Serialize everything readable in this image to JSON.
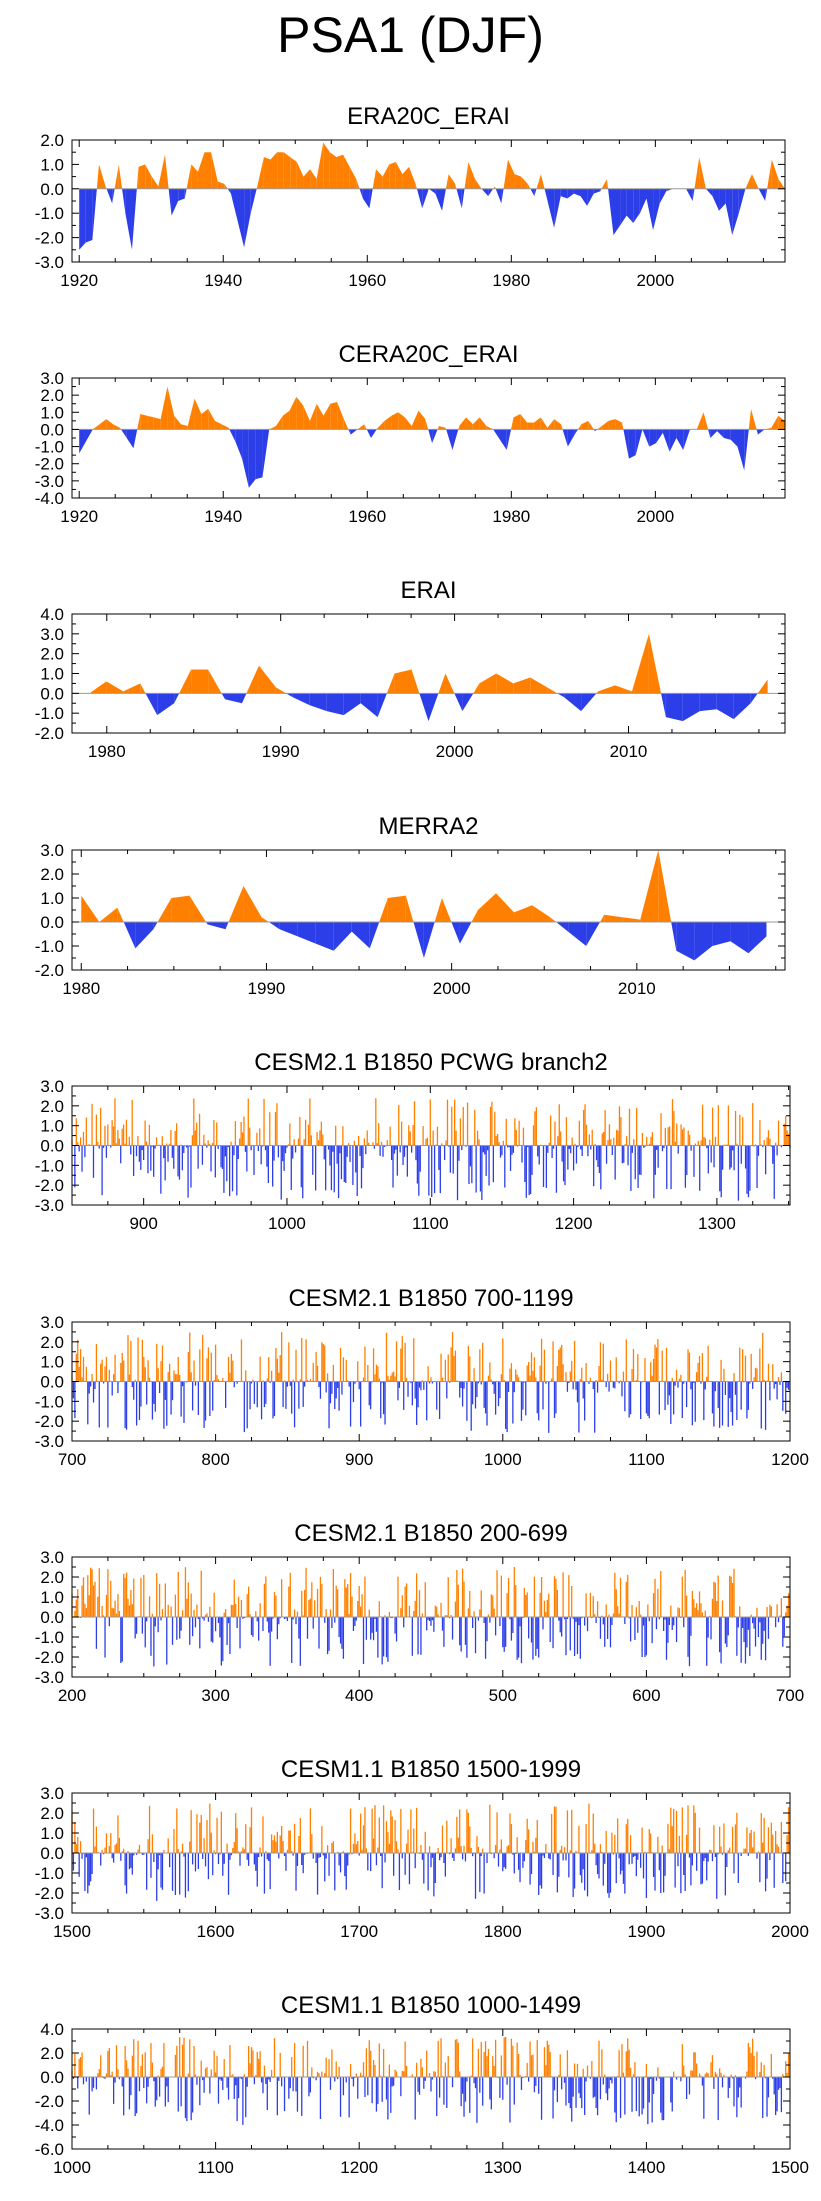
{
  "figure": {
    "title": "PSA1 (DJF)",
    "positive_color": "#ff8000",
    "negative_color": "#2c3ee8"
  },
  "chart_data": [
    {
      "type": "area",
      "title": "ERA20C_ERAI",
      "x_start": 1920,
      "x_end": 2018,
      "xlim": [
        1919,
        2018
      ],
      "ylim": [
        -3.0,
        2.0
      ],
      "yticks": [
        "2.0",
        "1.0",
        "0.0",
        "-1.0",
        "-2.0",
        "-3.0"
      ],
      "ytick_values": [
        2,
        1,
        0,
        -1,
        -2,
        -3
      ],
      "xticks": [
        "1920",
        "1940",
        "1960",
        "1980",
        "2000"
      ],
      "xtick_values": [
        1920,
        1940,
        1960,
        1980,
        2000
      ],
      "values": [
        -2.5,
        -2.2,
        -2.1,
        1.0,
        0.1,
        -0.6,
        1.0,
        -1.0,
        -2.5,
        0.9,
        1.0,
        0.5,
        0.1,
        1.4,
        -1.1,
        -0.5,
        -0.4,
        1.0,
        0.7,
        1.5,
        1.5,
        0.3,
        0.2,
        -0.2,
        -1.3,
        -2.4,
        -1.0,
        0.1,
        1.3,
        1.2,
        1.5,
        1.5,
        1.3,
        1.1,
        0.5,
        0.8,
        0.4,
        1.9,
        1.5,
        1.3,
        1.4,
        0.9,
        0.4,
        -0.4,
        -0.8,
        0.8,
        0.5,
        1.0,
        1.1,
        0.6,
        0.9,
        0.2,
        -0.8,
        0.0,
        -0.2,
        -0.9,
        0.6,
        0.2,
        -0.8,
        1.1,
        0.4,
        0.0,
        -0.3,
        0.1,
        -0.6,
        1.2,
        0.6,
        0.5,
        0.2,
        -0.3,
        0.6,
        -0.5,
        -1.6,
        -0.3,
        -0.4,
        -0.2,
        -0.3,
        -0.7,
        -0.2,
        -0.1,
        0.4,
        -1.9,
        -1.5,
        -1.1,
        -1.4,
        -1.0,
        -0.4,
        -1.7,
        -0.6,
        -0.1,
        0.0,
        0.0,
        0.0,
        -0.5,
        1.3,
        0.0,
        -0.3,
        -0.9,
        -0.6,
        -1.9,
        -1.0,
        0.0,
        0.6,
        0.0,
        -0.5,
        1.2,
        0.4,
        0.0
      ]
    },
    {
      "type": "area",
      "title": "CERA20C_ERAI",
      "x_start": 1920,
      "x_end": 2018,
      "xlim": [
        1919,
        2018
      ],
      "ylim": [
        -4.0,
        3.0
      ],
      "yticks": [
        "3.0",
        "2.0",
        "1.0",
        "0.0",
        "-1.0",
        "-2.0",
        "-3.0",
        "-4.0"
      ],
      "ytick_values": [
        3,
        2,
        1,
        0,
        -1,
        -2,
        -3,
        -4
      ],
      "xticks": [
        "1920",
        "1940",
        "1960",
        "1980",
        "2000"
      ],
      "xtick_values": [
        1920,
        1940,
        1960,
        1980,
        2000
      ],
      "values": [
        -1.4,
        -0.7,
        0.0,
        0.3,
        0.6,
        0.3,
        0.1,
        -0.5,
        -1.1,
        0.9,
        0.8,
        0.7,
        0.6,
        2.5,
        0.8,
        0.3,
        0.2,
        1.8,
        0.9,
        1.2,
        0.5,
        0.3,
        0.1,
        -0.7,
        -1.7,
        -3.4,
        -2.9,
        -2.8,
        0.0,
        0.2,
        0.8,
        1.1,
        1.9,
        1.4,
        0.5,
        1.5,
        0.8,
        1.5,
        1.6,
        0.6,
        -0.3,
        0.0,
        0.3,
        -0.5,
        0.1,
        0.5,
        0.8,
        1.0,
        0.7,
        0.2,
        1.1,
        0.6,
        -0.8,
        0.2,
        0.1,
        -1.2,
        0.2,
        0.7,
        0.3,
        0.7,
        0.2,
        0.0,
        -0.6,
        -1.2,
        0.7,
        0.9,
        0.4,
        0.4,
        0.7,
        0.1,
        0.6,
        0.3,
        -1.0,
        -0.3,
        0.3,
        0.5,
        -0.1,
        0.2,
        0.5,
        0.6,
        0.4,
        -1.7,
        -1.5,
        0.0,
        -1.0,
        -0.8,
        -0.2,
        -1.3,
        -0.5,
        -1.2,
        0.0,
        0.0,
        1.0,
        -0.5,
        -0.1,
        -0.5,
        -0.6,
        -1.0,
        -2.4,
        1.2,
        -0.3,
        0.0,
        0.1,
        0.8,
        0.5
      ]
    },
    {
      "type": "area",
      "title": "ERAI",
      "x_start": 1979,
      "x_end": 2018,
      "xlim": [
        1978,
        2019
      ],
      "ylim": [
        -2.0,
        4.0
      ],
      "yticks": [
        "4.0",
        "3.0",
        "2.0",
        "1.0",
        "0.0",
        "-1.0",
        "-2.0"
      ],
      "ytick_values": [
        4,
        3,
        2,
        1,
        0,
        -1,
        -2
      ],
      "xticks": [
        "1980",
        "1990",
        "2000",
        "2010"
      ],
      "xtick_values": [
        1980,
        1990,
        2000,
        2010
      ],
      "values": [
        0.0,
        0.6,
        0.1,
        0.5,
        -1.1,
        -0.5,
        1.2,
        1.2,
        -0.3,
        -0.5,
        1.4,
        0.3,
        -0.2,
        -0.6,
        -0.9,
        -1.1,
        -0.5,
        -1.2,
        1.0,
        1.2,
        -1.4,
        1.0,
        -0.9,
        0.5,
        1.0,
        0.5,
        0.8,
        0.3,
        -0.2,
        -0.9,
        0.1,
        0.4,
        0.1,
        3.0,
        -1.2,
        -1.4,
        -0.9,
        -0.8,
        -1.3,
        -0.5,
        0.7
      ]
    },
    {
      "type": "area",
      "title": "MERRA2",
      "x_start": 1980,
      "x_end": 2017,
      "xlim": [
        1979.5,
        2018
      ],
      "ylim": [
        -2.0,
        3.0
      ],
      "yticks": [
        "3.0",
        "2.0",
        "1.0",
        "0.0",
        "-1.0",
        "-2.0"
      ],
      "ytick_values": [
        3,
        2,
        1,
        0,
        -1,
        -2
      ],
      "xticks": [
        "1980",
        "1990",
        "2000",
        "2010"
      ],
      "xtick_values": [
        1980,
        1990,
        2000,
        2010
      ],
      "values": [
        1.1,
        0.0,
        0.6,
        -1.1,
        -0.3,
        1.0,
        1.1,
        -0.1,
        -0.3,
        1.5,
        0.2,
        -0.3,
        -0.6,
        -0.9,
        -1.2,
        -0.4,
        -1.1,
        1.0,
        1.1,
        -1.5,
        1.0,
        -0.9,
        0.5,
        1.2,
        0.4,
        0.7,
        0.2,
        -0.4,
        -1.0,
        0.3,
        0.2,
        0.1,
        3.0,
        -1.2,
        -1.6,
        -1.0,
        -0.8,
        -1.3,
        -0.6
      ]
    },
    {
      "type": "area",
      "title": "CESM2.1 B1850 PCWG branch2",
      "series_kind": "simulated",
      "x_start": 850,
      "x_end": 1351,
      "xlim": [
        850,
        1351
      ],
      "ylim": [
        -3.0,
        3.0
      ],
      "yticks": [
        "3.0",
        "2.0",
        "1.0",
        "0.0",
        "-1.0",
        "-2.0",
        "-3.0"
      ],
      "ytick_values": [
        3,
        2,
        1,
        0,
        -1,
        -2,
        -3
      ],
      "xticks": [
        "900",
        "1000",
        "1100",
        "1200",
        "1300"
      ],
      "xtick_values": [
        900,
        1000,
        1100,
        1200,
        1300
      ],
      "amp_pos": 2.4,
      "amp_neg": 2.8,
      "seed": 11
    },
    {
      "type": "area",
      "title": "CESM2.1 B1850 700-1199",
      "series_kind": "simulated",
      "x_start": 700,
      "x_end": 1199,
      "xlim": [
        700,
        1200
      ],
      "ylim": [
        -3.0,
        3.0
      ],
      "yticks": [
        "3.0",
        "2.0",
        "1.0",
        "0.0",
        "-1.0",
        "-2.0",
        "-3.0"
      ],
      "ytick_values": [
        3,
        2,
        1,
        0,
        -1,
        -2,
        -3
      ],
      "xticks": [
        "700",
        "800",
        "900",
        "1000",
        "1100",
        "1200"
      ],
      "xtick_values": [
        700,
        800,
        900,
        1000,
        1100,
        1200
      ],
      "amp_pos": 2.5,
      "amp_neg": 2.6,
      "seed": 23
    },
    {
      "type": "area",
      "title": "CESM2.1 B1850 200-699",
      "series_kind": "simulated",
      "x_start": 200,
      "x_end": 699,
      "xlim": [
        200,
        700
      ],
      "ylim": [
        -3.0,
        3.0
      ],
      "yticks": [
        "3.0",
        "2.0",
        "1.0",
        "0.0",
        "-1.0",
        "-2.0",
        "-3.0"
      ],
      "ytick_values": [
        3,
        2,
        1,
        0,
        -1,
        -2,
        -3
      ],
      "xticks": [
        "200",
        "300",
        "400",
        "500",
        "600",
        "700"
      ],
      "xtick_values": [
        200,
        300,
        400,
        500,
        600,
        700
      ],
      "amp_pos": 2.5,
      "amp_neg": 2.5,
      "seed": 37
    },
    {
      "type": "area",
      "title": "CESM1.1 B1850 1500-1999",
      "series_kind": "simulated",
      "x_start": 1500,
      "x_end": 1999,
      "xlim": [
        1500,
        2000
      ],
      "ylim": [
        -3.0,
        3.0
      ],
      "yticks": [
        "3.0",
        "2.0",
        "1.0",
        "0.0",
        "-1.0",
        "-2.0",
        "-3.0"
      ],
      "ytick_values": [
        3,
        2,
        1,
        0,
        -1,
        -2,
        -3
      ],
      "xticks": [
        "1500",
        "1600",
        "1700",
        "1800",
        "1900",
        "2000"
      ],
      "xtick_values": [
        1500,
        1600,
        1700,
        1800,
        1900,
        2000
      ],
      "amp_pos": 2.5,
      "amp_neg": 2.4,
      "seed": 51
    },
    {
      "type": "area",
      "title": "CESM1.1 B1850 1000-1499",
      "series_kind": "simulated",
      "x_start": 1000,
      "x_end": 1499,
      "xlim": [
        1000,
        1500
      ],
      "ylim": [
        -6.0,
        4.0
      ],
      "yticks": [
        "4.0",
        "2.0",
        "0.0",
        "-2.0",
        "-4.0",
        "-6.0"
      ],
      "ytick_values": [
        4,
        2,
        0,
        -2,
        -4,
        -6
      ],
      "xticks": [
        "1000",
        "1100",
        "1200",
        "1300",
        "1400",
        "1500"
      ],
      "xtick_values": [
        1000,
        1100,
        1200,
        1300,
        1400,
        1500
      ],
      "amp_pos": 3.4,
      "amp_neg": 4.0,
      "seed": 67
    }
  ]
}
